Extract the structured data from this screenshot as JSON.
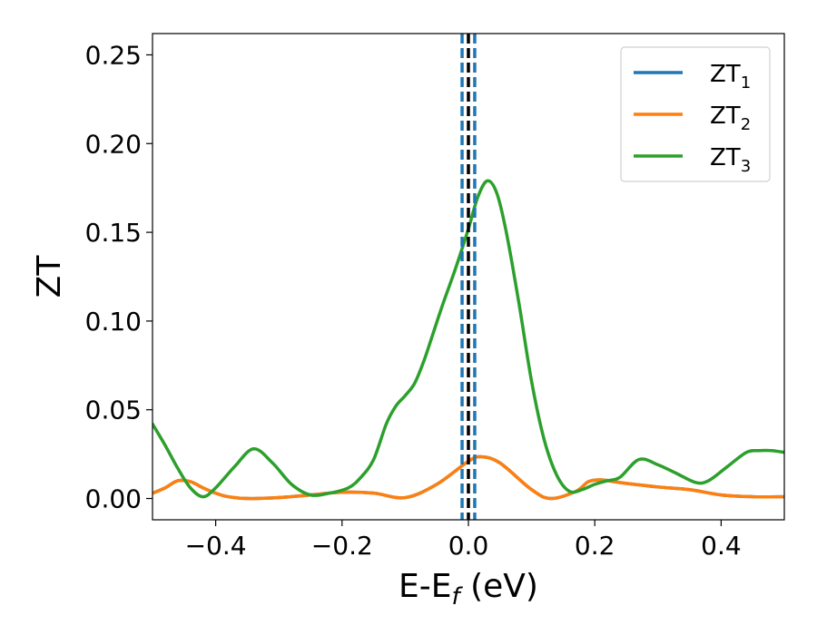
{
  "chart_data": {
    "type": "line",
    "xlabel": "E-E",
    "xlabel_sub": "f",
    "xlabel_unit": " (eV)",
    "ylabel": "ZT",
    "xlim": [
      -0.5,
      0.5
    ],
    "ylim": [
      -0.012,
      0.262
    ],
    "xticks": [
      -0.4,
      -0.2,
      0.0,
      0.2,
      0.4
    ],
    "xtick_labels": [
      "−0.4",
      "−0.2",
      "0.0",
      "0.2",
      "0.4"
    ],
    "yticks": [
      0.0,
      0.05,
      0.1,
      0.15,
      0.2,
      0.25
    ],
    "ytick_labels": [
      "0.00",
      "0.05",
      "0.10",
      "0.15",
      "0.20",
      "0.25"
    ],
    "grid": false,
    "legend_position": "top-right",
    "vertical_lines": [
      {
        "x": -0.01,
        "style": "dashed",
        "color": "#1f77b4"
      },
      {
        "x": 0.0,
        "style": "dashed",
        "color": "#000000"
      },
      {
        "x": 0.01,
        "style": "dashed",
        "color": "#1f77b4"
      }
    ],
    "series": [
      {
        "name": "ZT",
        "sub": "1",
        "color": "#1f77b4",
        "x": [
          -0.5,
          -0.48,
          -0.46,
          -0.44,
          -0.42,
          -0.4,
          -0.38,
          -0.35,
          -0.3,
          -0.25,
          -0.2,
          -0.15,
          -0.1,
          -0.05,
          0.0,
          0.02,
          0.05,
          0.1,
          0.13,
          0.17,
          0.19,
          0.21,
          0.23,
          0.25,
          0.3,
          0.35,
          0.4,
          0.45,
          0.5
        ],
        "y": [
          0.003,
          0.006,
          0.01,
          0.0095,
          0.006,
          0.003,
          0.001,
          0.0,
          0.0005,
          0.002,
          0.0035,
          0.003,
          0.0005,
          0.008,
          0.021,
          0.0235,
          0.02,
          0.005,
          0.0,
          0.004,
          0.0095,
          0.0105,
          0.0095,
          0.0085,
          0.0065,
          0.005,
          0.002,
          0.001,
          0.001
        ]
      },
      {
        "name": "ZT",
        "sub": "2",
        "color": "#ff7f0e",
        "x": [
          -0.5,
          -0.48,
          -0.46,
          -0.44,
          -0.42,
          -0.4,
          -0.38,
          -0.35,
          -0.3,
          -0.25,
          -0.2,
          -0.15,
          -0.1,
          -0.05,
          0.0,
          0.02,
          0.05,
          0.1,
          0.13,
          0.17,
          0.19,
          0.21,
          0.23,
          0.25,
          0.3,
          0.35,
          0.4,
          0.45,
          0.5
        ],
        "y": [
          0.003,
          0.006,
          0.01,
          0.0095,
          0.006,
          0.003,
          0.001,
          0.0,
          0.0005,
          0.002,
          0.0035,
          0.003,
          0.0005,
          0.008,
          0.021,
          0.0235,
          0.02,
          0.005,
          0.0,
          0.004,
          0.0095,
          0.0105,
          0.0095,
          0.0085,
          0.0065,
          0.005,
          0.002,
          0.001,
          0.001
        ]
      },
      {
        "name": "ZT",
        "sub": "3",
        "color": "#2ca02c",
        "x": [
          -0.5,
          -0.48,
          -0.46,
          -0.44,
          -0.42,
          -0.4,
          -0.37,
          -0.34,
          -0.31,
          -0.28,
          -0.25,
          -0.22,
          -0.19,
          -0.17,
          -0.15,
          -0.13,
          -0.115,
          -0.1,
          -0.085,
          -0.07,
          -0.055,
          -0.04,
          -0.02,
          0.0,
          0.015,
          0.03,
          0.045,
          0.06,
          0.08,
          0.1,
          0.12,
          0.14,
          0.16,
          0.18,
          0.2,
          0.22,
          0.24,
          0.27,
          0.3,
          0.33,
          0.36,
          0.38,
          0.41,
          0.44,
          0.46,
          0.48,
          0.5
        ],
        "y": [
          0.042,
          0.03,
          0.017,
          0.006,
          0.001,
          0.006,
          0.018,
          0.028,
          0.02,
          0.008,
          0.002,
          0.003,
          0.006,
          0.012,
          0.022,
          0.042,
          0.052,
          0.058,
          0.065,
          0.078,
          0.094,
          0.11,
          0.13,
          0.152,
          0.17,
          0.179,
          0.172,
          0.15,
          0.11,
          0.066,
          0.033,
          0.013,
          0.004,
          0.005,
          0.008,
          0.01,
          0.012,
          0.022,
          0.019,
          0.014,
          0.009,
          0.01,
          0.018,
          0.026,
          0.027,
          0.027,
          0.026
        ]
      }
    ]
  }
}
